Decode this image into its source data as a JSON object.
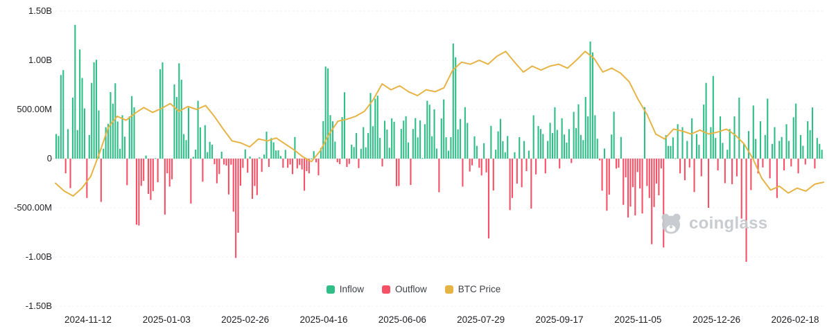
{
  "chart_data": {
    "type": "bar+line",
    "title": "",
    "unit": "USD (left axis: B = billions, M = millions)",
    "y_axis": {
      "labels": [
        "1.50B",
        "1.00B",
        "500.00M",
        "0",
        "-500.00M",
        "-1.00B",
        "-1.50B"
      ],
      "values_millions": [
        1500,
        1000,
        500,
        0,
        -500,
        -1000,
        -1500
      ],
      "range_millions": [
        -1500,
        1500
      ],
      "grid": true
    },
    "x_axis": {
      "labels": [
        "2024-11-12",
        "2025-01-03",
        "2025-02-26",
        "2025-04-16",
        "2025-06-06",
        "2025-07-29",
        "2025-09-17",
        "2025-11-05",
        "2025-12-26",
        "2026-02-18"
      ]
    },
    "legend": {
      "position": "bottom",
      "items": [
        {
          "label": "Inflow",
          "color": "#2fbe87"
        },
        {
          "label": "Outflow",
          "color": "#f55066"
        },
        {
          "label": "BTC Price",
          "color": "#e6b345"
        }
      ]
    },
    "series": [
      {
        "name": "Flows",
        "type": "bar",
        "unit": "millions USD (positive = Inflow, negative = Outflow)",
        "values": [
          250,
          230,
          850,
          900,
          -150,
          300,
          -300,
          620,
          1360,
          290,
          1110,
          820,
          510,
          -400,
          240,
          770,
          980,
          1005,
          490,
          -440,
          100,
          320,
          354,
          676,
          558,
          766,
          377,
          100,
          441,
          223,
          -270,
          429,
          636,
          522,
          -672,
          -680,
          -277,
          -226,
          31,
          -359,
          -420,
          -330,
          5,
          -240,
          908,
          978,
          -569,
          -149,
          -284,
          -210,
          755,
          626,
          969,
          802,
          249,
          188,
          518,
          -457,
          18,
          92,
          588,
          318,
          -235,
          340,
          66,
          171,
          142,
          -57,
          -251,
          -157,
          70,
          -60,
          -71,
          -364,
          -62,
          -539,
          -1010,
          -754,
          -276,
          -94,
          94,
          -143,
          21,
          -409,
          -278,
          -371,
          13,
          -135,
          41,
          274,
          -85,
          209,
          165,
          83,
          84,
          26,
          -93,
          89,
          -93,
          -60,
          -158,
          220,
          -100,
          -65,
          -110,
          -326,
          -127,
          -150,
          1,
          76,
          -38,
          -170,
          108,
          381,
          936,
          917,
          442,
          380,
          173,
          -37,
          -56,
          422,
          675,
          -85,
          -54,
          142,
          117,
          260,
          -96,
          100,
          320,
          115,
          260,
          667,
          329,
          609,
          640,
          211,
          -80,
          385,
          295,
          110,
          409,
          375,
          -280,
          -278,
          302,
          386,
          431,
          164,
          -268,
          301,
          412,
          216,
          389,
          6,
          350,
          588,
          548,
          227,
          501,
          102,
          -342,
          408,
          602,
          217,
          80,
          218,
          1170,
          1030,
          297,
          403,
          -285,
          523,
          363,
          -131,
          -68,
          226,
          130,
          -93,
          -171,
          157,
          -140,
          -812,
          333,
          -324,
          91,
          277,
          404,
          178,
          65,
          230,
          -523,
          -400,
          65,
          -254,
          219,
          -291,
          179,
          -127,
          81,
          -508,
          440,
          -160,
          332,
          301,
          250,
          -150,
          180,
          364,
          260,
          522,
          292,
          -100,
          410,
          245,
          163,
          300,
          -45,
          475,
          310,
          552,
          241,
          188,
          627,
          429,
          1190,
          1080,
          441,
          202,
          -18,
          -326,
          102,
          -530,
          -366,
          245,
          477,
          -101,
          -92,
          220,
          -470,
          -191,
          -598,
          -488,
          -290,
          -578,
          -137,
          -304,
          -558,
          524,
          -278,
          -400,
          -870,
          -492,
          -254,
          -373,
          -100,
          -903,
          238,
          129,
          128,
          216,
          3,
          350,
          -150,
          320,
          -220,
          180,
          -90,
          410,
          -340,
          250,
          140,
          -180,
          550,
          770,
          -500,
          320,
          840,
          210,
          -120,
          430,
          160,
          -250,
          90,
          300,
          -260,
          430,
          -180,
          620,
          -610,
          150,
          -1050,
          280,
          -320,
          540,
          200,
          -150,
          380,
          -90,
          240,
          610,
          -200,
          150,
          320,
          -400,
          180,
          220,
          -120,
          350,
          180,
          -80,
          420,
          560,
          -150,
          240,
          130,
          -60,
          380,
          290,
          520,
          -100,
          210,
          150,
          90
        ]
      },
      {
        "name": "BTC Price",
        "type": "line",
        "note": "no right-hand price axis shown; line encoded in left-axis visual units (millions)",
        "values": [
          -250,
          -330,
          -380,
          -300,
          -180,
          60,
          320,
          430,
          390,
          460,
          520,
          470,
          510,
          560,
          480,
          530,
          500,
          540,
          430,
          300,
          180,
          160,
          120,
          200,
          180,
          210,
          150,
          90,
          20,
          -30,
          80,
          250,
          380,
          400,
          430,
          480,
          600,
          760,
          700,
          740,
          680,
          640,
          700,
          680,
          720,
          900,
          980,
          960,
          1000,
          960,
          1040,
          1090,
          980,
          880,
          940,
          900,
          940,
          960,
          920,
          1000,
          1090,
          1020,
          880,
          920,
          870,
          780,
          600,
          450,
          250,
          200,
          300,
          280,
          250,
          290,
          250,
          270,
          300,
          240,
          150,
          0,
          -200,
          -320,
          -280,
          -350,
          -300,
          -330,
          -260,
          -240
        ]
      }
    ]
  },
  "watermark": {
    "text": "coinglass"
  }
}
